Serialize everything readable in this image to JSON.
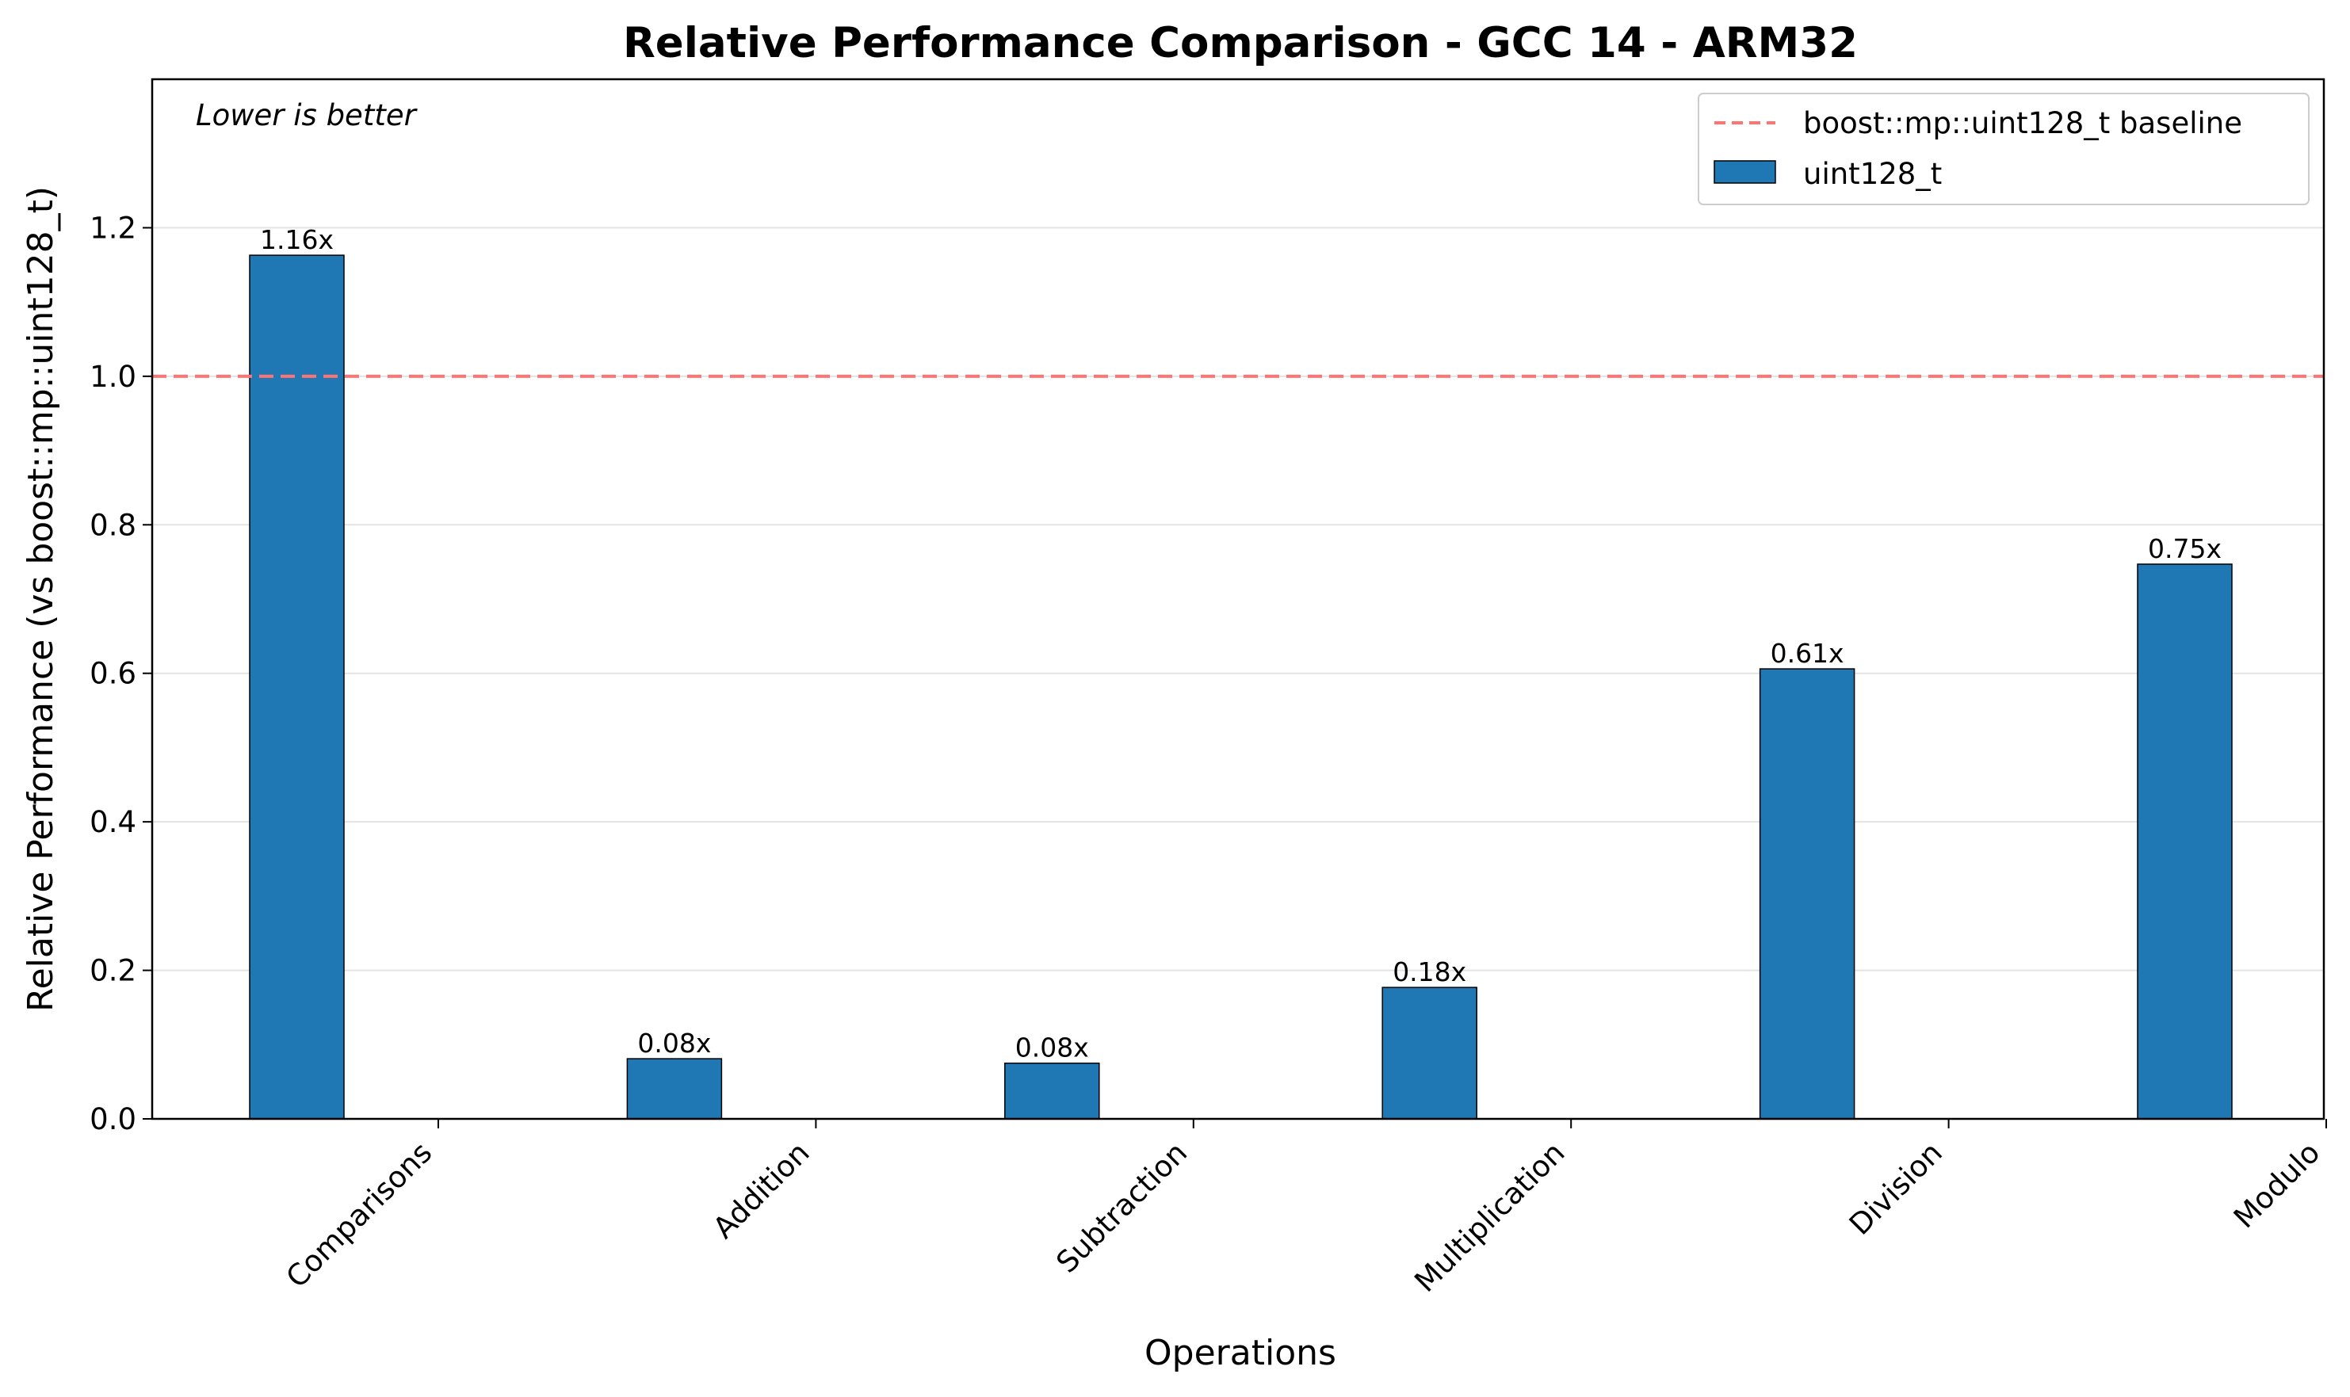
{
  "chart_data": {
    "type": "bar",
    "title": "Relative Performance Comparison - GCC 14 - ARM32",
    "xlabel": "Operations",
    "ylabel": "Relative Performance (vs boost::mp::uint128_t)",
    "annotation": "Lower is better",
    "categories": [
      "Comparisons",
      "Addition",
      "Subtraction",
      "Multiplication",
      "Division",
      "Modulo"
    ],
    "series": [
      {
        "name": "uint128_t",
        "values": [
          1.163,
          0.081,
          0.075,
          0.177,
          0.606,
          0.747
        ],
        "labels": [
          "1.16x",
          "0.08x",
          "0.08x",
          "0.18x",
          "0.61x",
          "0.75x"
        ],
        "color": "#1f77b4"
      }
    ],
    "baseline": {
      "name": "boost::mp::uint128_t baseline",
      "value": 1.0,
      "color": "#ff7373"
    },
    "ylim": [
      0,
      1.4
    ],
    "yticks": [
      0.0,
      0.2,
      0.4,
      0.6,
      0.8,
      1.0,
      1.2
    ],
    "ytick_labels": [
      "0.0",
      "0.2",
      "0.4",
      "0.6",
      "0.8",
      "1.0",
      "1.2"
    ],
    "grid": "y",
    "legend_position": "top-right"
  }
}
